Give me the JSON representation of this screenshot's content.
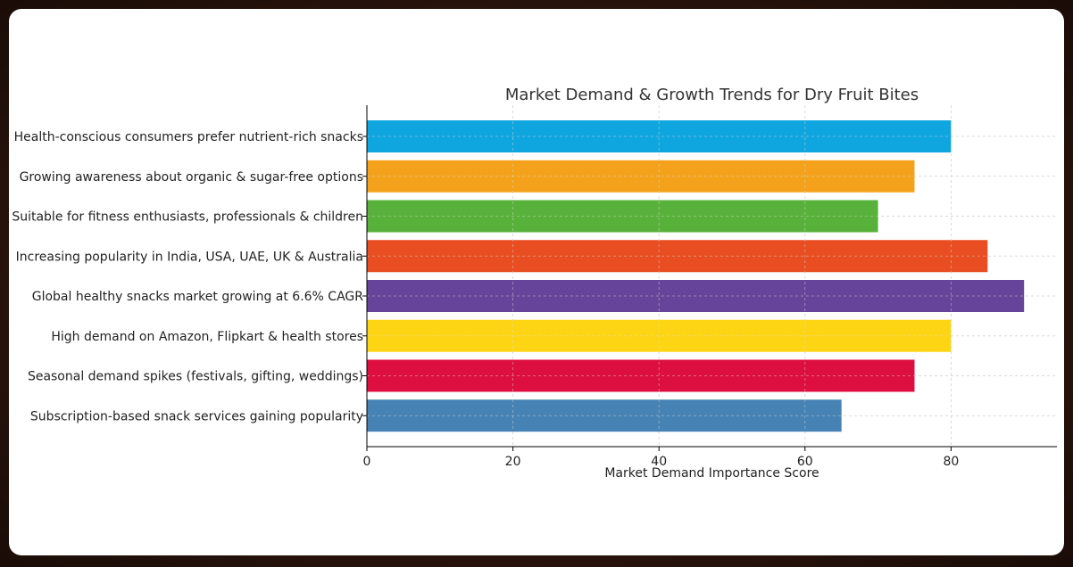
{
  "chart_data": {
    "type": "bar",
    "orientation": "horizontal",
    "title": "Market Demand & Growth Trends for Dry Fruit Bites",
    "xlabel": "Market Demand Importance Score",
    "ylabel": "",
    "xlim": [
      0,
      94.5
    ],
    "xticks": [
      0,
      20,
      40,
      60,
      80
    ],
    "grid": true,
    "categories": [
      "Health-conscious consumers prefer nutrient-rich snacks",
      "Growing awareness about organic & sugar-free options",
      "Suitable for fitness enthusiasts, professionals & children",
      "Increasing popularity in India, USA, UAE, UK & Australia",
      "Global healthy snacks market growing at 6.6% CAGR",
      "High demand on Amazon, Flipkart & health stores",
      "Seasonal demand spikes (festivals, gifting, weddings)",
      "Subscription-based snack services gaining popularity"
    ],
    "values": [
      80,
      75,
      70,
      85,
      90,
      80,
      75,
      65
    ],
    "colors": [
      "#0fa5df",
      "#f4a21c",
      "#58b13a",
      "#e84e21",
      "#66449a",
      "#fdd515",
      "#dc0f40",
      "#4682b4"
    ]
  }
}
